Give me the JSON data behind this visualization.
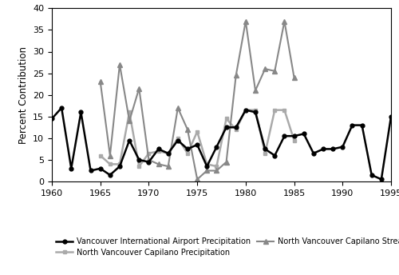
{
  "years": [
    1960,
    1961,
    1962,
    1963,
    1964,
    1965,
    1966,
    1967,
    1968,
    1969,
    1970,
    1971,
    1972,
    1973,
    1974,
    1975,
    1976,
    1977,
    1978,
    1979,
    1980,
    1981,
    1982,
    1983,
    1984,
    1985,
    1986,
    1987,
    1988,
    1989,
    1990,
    1991,
    1992,
    1993,
    1994,
    1995
  ],
  "airport_precip": [
    14.5,
    17.0,
    3.0,
    16.0,
    2.5,
    3.0,
    1.5,
    3.5,
    9.5,
    5.0,
    4.5,
    7.5,
    6.5,
    9.5,
    7.5,
    8.5,
    3.5,
    8.0,
    12.5,
    12.5,
    16.5,
    16.0,
    7.5,
    6.0,
    10.5,
    10.5,
    11.0,
    6.5,
    7.5,
    7.5,
    8.0,
    13.0,
    13.0,
    1.5,
    0.5,
    15.0
  ],
  "capilano_precip": [
    null,
    null,
    null,
    null,
    null,
    6.0,
    4.0,
    4.0,
    16.0,
    3.5,
    6.5,
    7.0,
    6.5,
    10.0,
    6.5,
    11.5,
    4.0,
    3.5,
    14.5,
    12.0,
    16.5,
    16.5,
    6.5,
    16.5,
    16.5,
    9.5,
    null,
    null,
    null,
    null,
    null,
    null,
    null,
    null,
    null,
    null
  ],
  "capilano_streamflow": [
    null,
    null,
    null,
    null,
    null,
    23.0,
    6.0,
    27.0,
    14.0,
    21.5,
    5.0,
    4.0,
    3.5,
    17.0,
    12.0,
    0.5,
    2.5,
    2.5,
    4.5,
    24.5,
    37.0,
    21.0,
    26.0,
    25.5,
    37.0,
    24.0,
    null,
    null,
    null,
    null,
    null,
    null,
    null,
    null,
    null,
    null
  ],
  "airport_color": "#000000",
  "capilano_precip_color": "#aaaaaa",
  "capilano_streamflow_color": "#888888",
  "ylabel": "Percent Contribution",
  "xlim": [
    1960,
    1995
  ],
  "ylim": [
    0,
    40
  ],
  "yticks": [
    0,
    5,
    10,
    15,
    20,
    25,
    30,
    35,
    40
  ],
  "xticks": [
    1960,
    1965,
    1970,
    1975,
    1980,
    1985,
    1990,
    1995
  ],
  "legend_airport": "Vancouver International Airport Precipitation",
  "legend_capilano_precip": "North Vancouver Capilano Precipitation",
  "legend_capilano_streamflow": "North Vancouver Capilano Streamflow"
}
